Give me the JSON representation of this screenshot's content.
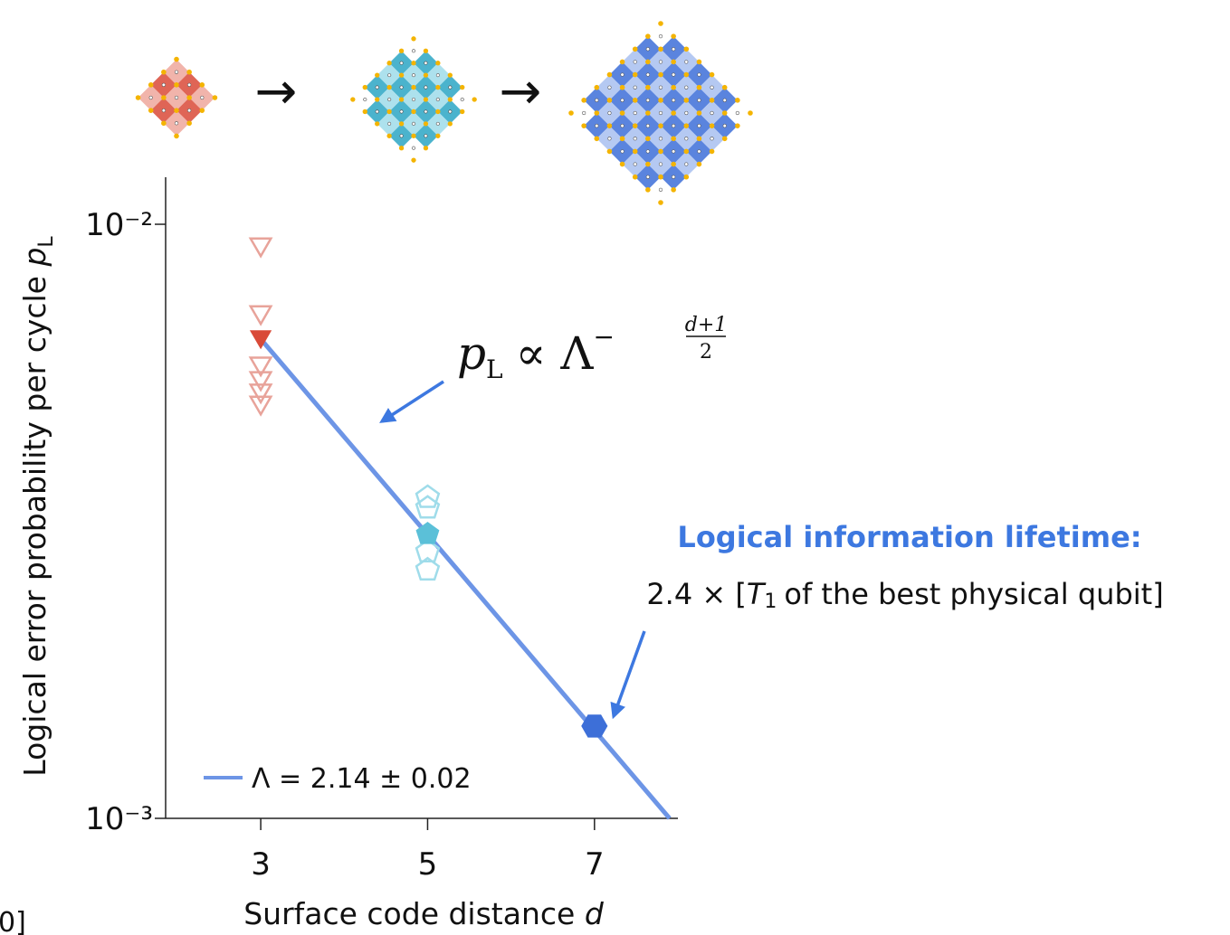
{
  "chart_data": {
    "type": "scatter",
    "y_label": "Logical error probability per cycle",
    "y_label_var": "p",
    "y_label_sub": "L",
    "x_label": "Surface code distance",
    "x_label_var": "d",
    "xlim": [
      1.86,
      8.0
    ],
    "xticks": [
      3,
      5,
      7
    ],
    "ylim": [
      0.001,
      0.012
    ],
    "log_y": true,
    "yticks": [
      {
        "value": 0.01,
        "label": "10⁻²"
      },
      {
        "value": 0.001,
        "label": "10⁻³"
      }
    ],
    "legend": "bottom-left",
    "series": [
      {
        "kind": "scatter",
        "marker": "triangle-down",
        "filled": false,
        "color": "#e8a39a",
        "x": [
          3,
          3,
          3,
          3,
          3,
          3
        ],
        "values": [
          0.00925,
          0.00711,
          0.00583,
          0.00551,
          0.00525,
          0.00501
        ]
      },
      {
        "kind": "scatter",
        "marker": "triangle-down",
        "filled": true,
        "color": "#d94a38",
        "x": [
          3
        ],
        "values": [
          0.00647
        ]
      },
      {
        "kind": "scatter",
        "marker": "pentagon",
        "filled": false,
        "color": "#9fdcea",
        "x": [
          5,
          5,
          5,
          5
        ],
        "values": [
          0.00347,
          0.00333,
          0.00281,
          0.00262
        ]
      },
      {
        "kind": "scatter",
        "marker": "pentagon",
        "filled": true,
        "color": "#5bc0d8",
        "x": [
          5
        ],
        "values": [
          0.00301
        ]
      },
      {
        "kind": "scatter",
        "marker": "hexagon",
        "filled": true,
        "color": "#3d6fd8",
        "x": [
          7
        ],
        "values": [
          0.00143
        ]
      },
      {
        "kind": "line",
        "name": "Λ = 2.14 ± 0.02",
        "color": "#6d95e6",
        "x": [
          3,
          7.9
        ],
        "values": [
          0.00641,
          0.001
        ]
      }
    ],
    "formula": {
      "base": "p",
      "sub": "L",
      "rel": "∝ Λ",
      "exp_sign": "−",
      "exp_num": "d+1",
      "exp_den": "2"
    },
    "lifetime_title": "Logical information lifetime:",
    "lifetime_factor": "2.4 × [",
    "lifetime_var": "T",
    "lifetime_sub": "1",
    "lifetime_rest": "of the best physical qubit]",
    "footnote": "0]"
  }
}
